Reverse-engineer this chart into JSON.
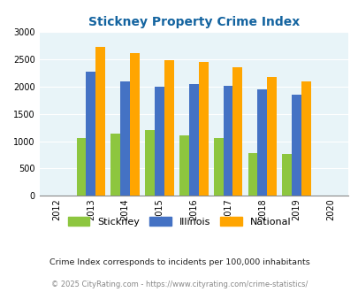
{
  "title": "Stickney Property Crime Index",
  "years": [
    2013,
    2014,
    2015,
    2016,
    2017,
    2018,
    2019
  ],
  "stickney": [
    1060,
    1140,
    1200,
    1100,
    1060,
    780,
    760
  ],
  "illinois": [
    2270,
    2090,
    2000,
    2055,
    2010,
    1945,
    1850
  ],
  "national": [
    2730,
    2610,
    2490,
    2460,
    2360,
    2185,
    2090
  ],
  "color_stickney": "#8DC63F",
  "color_illinois": "#4472C4",
  "color_national": "#FFA500",
  "xlim_min": 2011.5,
  "xlim_max": 2020.5,
  "ylim": [
    0,
    3000
  ],
  "yticks": [
    0,
    500,
    1000,
    1500,
    2000,
    2500,
    3000
  ],
  "background_color": "#E8F4F8",
  "title_color": "#1464A0",
  "legend_labels": [
    "Stickney",
    "Illinois",
    "National"
  ],
  "footnote1": "Crime Index corresponds to incidents per 100,000 inhabitants",
  "footnote2": "© 2025 CityRating.com - https://www.cityrating.com/crime-statistics/",
  "bar_width": 0.28
}
